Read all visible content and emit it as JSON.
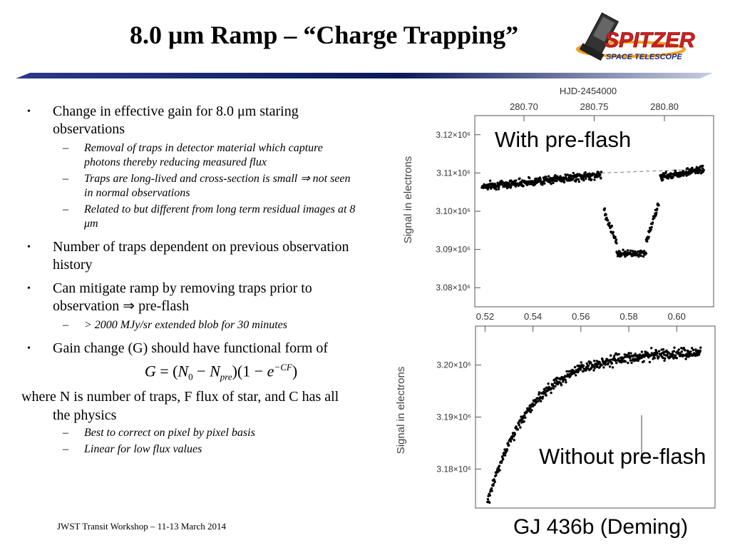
{
  "slide": {
    "title": "8.0 μm Ramp – “Charge Trapping”",
    "logo": {
      "line1": "SPITZER",
      "line2": "SPACE TELESCOPE"
    },
    "footer": "JWST Transit Workshop – 11-13 March 2014",
    "credit": "GJ 436b (Deming)"
  },
  "bullets": {
    "b1": "Change in effective gain for 8.0 μm staring observations",
    "b1_sub": [
      "Removal of traps in detector material which capture photons thereby reducing measured flux",
      "Traps are long-lived and cross-section is small ⇒ not seen in normal observations",
      "Related to but different from long term residual images at 8 μm"
    ],
    "b2": "Number of traps dependent on previous observation history",
    "b3": "Can mitigate ramp by removing traps prior to observation ⇒ pre-flash",
    "b3_sub": [
      "> 2000 MJy/sr extended blob for 30 minutes"
    ],
    "b4": "Gain change (G) should have functional form of",
    "where": "where N is number of traps, F flux of star, and C has all the physics",
    "where_sub": [
      "Best to correct on pixel by pixel basis",
      "Linear for low flux values"
    ],
    "equation": {
      "lhs": "G",
      "n0": "N",
      "n0_sub": "0",
      "npre": "N",
      "npre_sub": "pre",
      "e": "e",
      "exp": "−CF"
    }
  },
  "chart_data": [
    {
      "type": "scatter",
      "title": "",
      "annotation": "With pre-flash",
      "xlabel": "",
      "x2label": "HJD-2454000",
      "ylabel": "Signal in electrons",
      "x2ticks": [
        "280.70",
        "280.75",
        "280.80"
      ],
      "yticks": [
        "3.12×10⁶",
        "3.11×10⁶",
        "3.10×10⁶",
        "3.09×10⁶",
        "3.08×10⁶"
      ],
      "ylim": [
        3.075,
        3.125
      ],
      "xlim": [
        280.665,
        280.835
      ],
      "segments": [
        {
          "x": [
            280.67,
            280.755
          ],
          "y": [
            3.1065,
            3.1095
          ],
          "spread": 0.0015
        },
        {
          "x": [
            280.757,
            280.766
          ],
          "y": [
            3.1,
            3.092
          ],
          "spread": 0.0015
        },
        {
          "x": [
            280.766,
            280.787
          ],
          "y": [
            3.089,
            3.089
          ],
          "spread": 0.0012
        },
        {
          "x": [
            280.787,
            280.796
          ],
          "y": [
            3.092,
            3.102
          ],
          "spread": 0.0015
        },
        {
          "x": [
            280.797,
            280.828
          ],
          "y": [
            3.109,
            3.111
          ],
          "spread": 0.0015
        }
      ],
      "trend_line": {
        "x": [
          280.755,
          280.828
        ],
        "y": [
          3.11,
          3.111
        ]
      },
      "grid": false
    },
    {
      "type": "scatter",
      "title": "",
      "annotation": "Without pre-flash",
      "xlabel": "",
      "x2label": "",
      "ylabel": "Signal in electrons",
      "x2ticks": [
        "0.52",
        "0.54",
        "0.56",
        "0.58",
        "0.60"
      ],
      "yticks": [
        "3.20×10⁶",
        "3.19×10⁶",
        "3.18×10⁶"
      ],
      "ylim": [
        3.1725,
        3.2075
      ],
      "xlim": [
        0.516,
        0.616
      ],
      "model": {
        "y_start": 3.1735,
        "y_end": 3.2025,
        "x_start": 0.521,
        "x_end": 0.61,
        "tau": 0.018
      },
      "spread": 0.0015,
      "grid": false
    }
  ]
}
